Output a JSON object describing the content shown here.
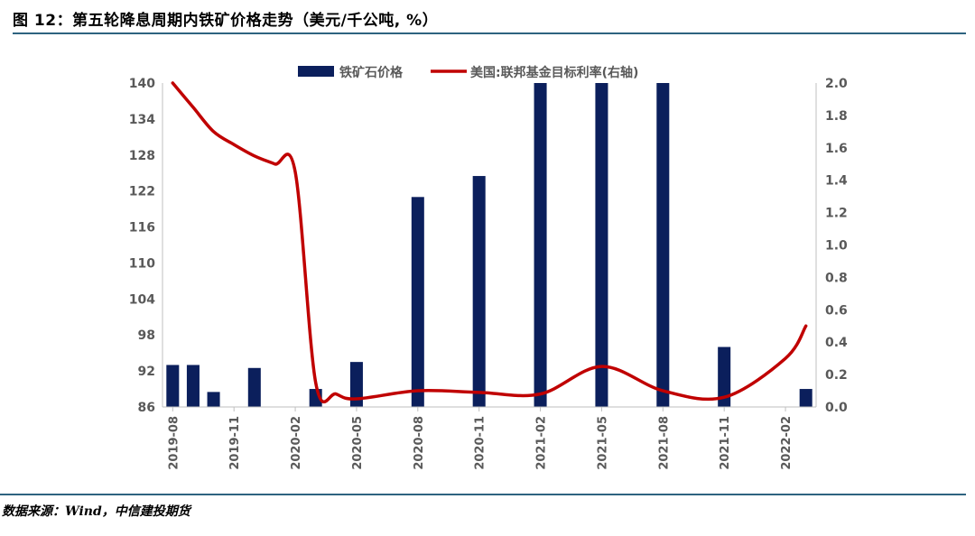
{
  "header": {
    "title": "图 12：第五轮降息周期内铁矿价格走势（美元/千公吨, %）"
  },
  "footer": {
    "source": "数据来源：Wind，中信建投期货"
  },
  "colors": {
    "bar": "#0b1f5c",
    "line": "#c00000",
    "rule": "#2e6380",
    "axis_text": "#595959"
  },
  "chart_data": {
    "type": "bar",
    "title": "",
    "legend": {
      "position": "top"
    },
    "series": [
      {
        "name": "铁矿石价格",
        "type": "bar",
        "axis": "left",
        "points": [
          {
            "x": "2019-08",
            "y": 93.0
          },
          {
            "x": "2019-09",
            "y": 93.0
          },
          {
            "x": "2019-10",
            "y": 88.5
          },
          {
            "x": "2019-12",
            "y": 92.5
          },
          {
            "x": "2020-03",
            "y": 89.0
          },
          {
            "x": "2020-05",
            "y": 93.5
          },
          {
            "x": "2020-08",
            "y": 121.0
          },
          {
            "x": "2020-11",
            "y": 124.5
          },
          {
            "x": "2021-02",
            "y": 140.0
          },
          {
            "x": "2021-05",
            "y": 140.0
          },
          {
            "x": "2021-08",
            "y": 140.0
          },
          {
            "x": "2021-11",
            "y": 96.0
          },
          {
            "x": "2022-03",
            "y": 89.0
          }
        ]
      },
      {
        "name": "美国:联邦基金目标利率(右轴)",
        "type": "line",
        "axis": "right",
        "points": [
          {
            "x": "2019-08",
            "y": 2.0
          },
          {
            "x": "2019-09",
            "y": 1.85
          },
          {
            "x": "2019-10",
            "y": 1.7
          },
          {
            "x": "2019-11",
            "y": 1.62
          },
          {
            "x": "2019-12",
            "y": 1.55
          },
          {
            "x": "2020-01",
            "y": 1.5
          },
          {
            "x": "2020-02",
            "y": 1.45
          },
          {
            "x": "2020-03",
            "y": 0.15
          },
          {
            "x": "2020-04",
            "y": 0.08
          },
          {
            "x": "2020-05",
            "y": 0.05
          },
          {
            "x": "2020-08",
            "y": 0.1
          },
          {
            "x": "2020-11",
            "y": 0.09
          },
          {
            "x": "2021-02",
            "y": 0.08
          },
          {
            "x": "2021-05",
            "y": 0.25
          },
          {
            "x": "2021-08",
            "y": 0.1
          },
          {
            "x": "2021-11",
            "y": 0.06
          },
          {
            "x": "2022-02",
            "y": 0.3
          },
          {
            "x": "2022-03",
            "y": 0.5
          }
        ]
      }
    ],
    "x_axis": {
      "start": "2019-08",
      "end": "2022-03",
      "tick_labels": [
        "2019-08",
        "2019-11",
        "2020-02",
        "2020-05",
        "2020-08",
        "2020-11",
        "2021-02",
        "2021-05",
        "2021-08",
        "2021-11",
        "2022-02"
      ]
    },
    "y_left": {
      "min": 86,
      "max": 140,
      "ticks": [
        86,
        92,
        98,
        104,
        110,
        116,
        122,
        128,
        134,
        140
      ]
    },
    "y_right": {
      "min": 0,
      "max": 2.0,
      "ticks": [
        "0.0",
        "0.2",
        "0.4",
        "0.6",
        "0.8",
        "1.0",
        "1.2",
        "1.4",
        "1.6",
        "1.8",
        "2.0"
      ]
    },
    "grid": false
  }
}
